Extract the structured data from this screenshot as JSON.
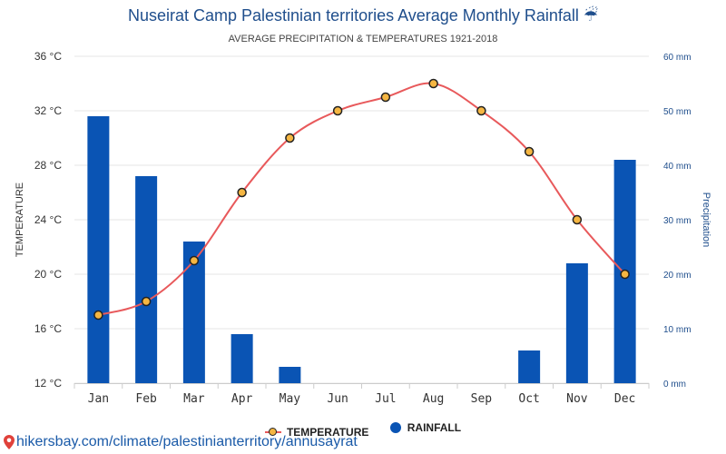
{
  "title": "Nuseirat Camp Palestinian territories Average Monthly Rainfall",
  "title_icon": "umbrella-rain-icon",
  "subtitle": "AVERAGE PRECIPITATION & TEMPERATURES 1921-2018",
  "legend": {
    "temperature": "TEMPERATURE",
    "rainfall": "RAINFALL"
  },
  "source": "hikersbay.com/climate/palestinianterritory/annusayrat",
  "colors": {
    "title": "#1f4e8c",
    "bar": "#0a54b4",
    "line": "#e8595b",
    "marker_fill": "#f5b642",
    "marker_stroke": "#222222",
    "grid": "#e6e6e6",
    "right_axis": "#1f4e8c"
  },
  "chart_data": {
    "type": "bar+line",
    "title": "Nuseirat Camp Palestinian territories Average Monthly Rainfall",
    "subtitle": "AVERAGE PRECIPITATION & TEMPERATURES 1921-2018",
    "categories": [
      "Jan",
      "Feb",
      "Mar",
      "Apr",
      "May",
      "Jun",
      "Jul",
      "Aug",
      "Sep",
      "Oct",
      "Nov",
      "Dec"
    ],
    "series": [
      {
        "name": "TEMPERATURE",
        "type": "line",
        "axis": "left",
        "unit": "°C",
        "values": [
          17,
          18,
          21,
          26,
          30,
          32,
          33,
          34,
          32,
          29,
          24,
          20
        ]
      },
      {
        "name": "RAINFALL",
        "type": "bar",
        "axis": "right",
        "unit": "mm",
        "values": [
          49,
          38,
          26,
          9,
          3,
          0,
          0,
          0,
          0,
          6,
          22,
          41
        ]
      }
    ],
    "ylabel_left": "TEMPERATURE",
    "ylabel_right": "Precipitation",
    "ylim_left": [
      12,
      36
    ],
    "ylim_right": [
      0,
      60
    ],
    "yticks_left": [
      "12 °C",
      "16 °C",
      "20 °C",
      "24 °C",
      "28 °C",
      "32 °C",
      "36 °C"
    ],
    "yticks_right": [
      "0 mm",
      "10 mm",
      "20 mm",
      "30 mm",
      "40 mm",
      "50 mm",
      "60 mm"
    ],
    "grid": true,
    "legend_position": "bottom-center"
  }
}
